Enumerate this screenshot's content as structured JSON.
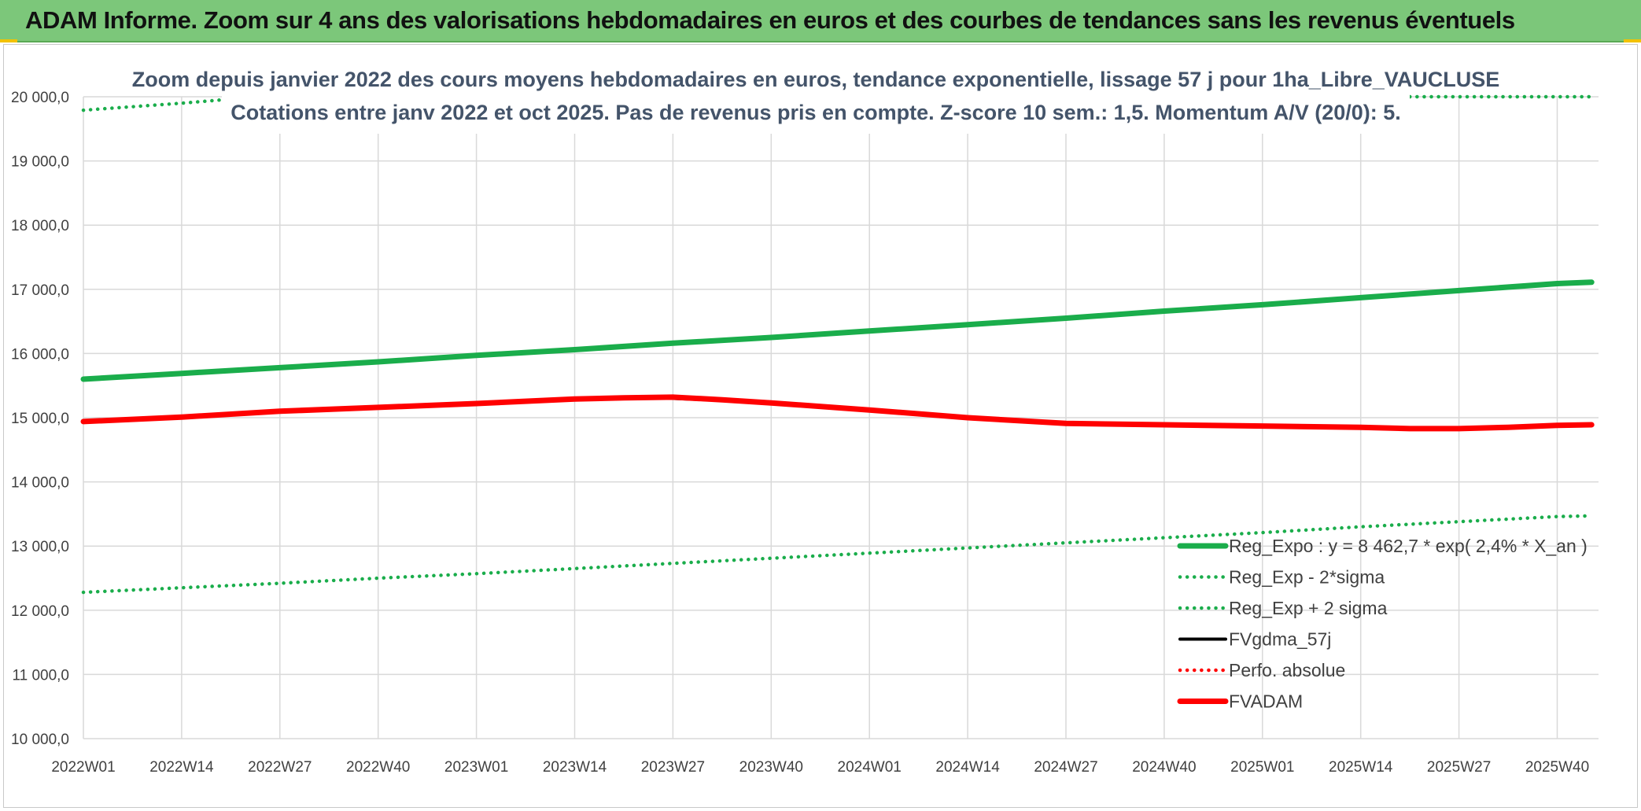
{
  "header": {
    "title": "ADAM Informe. Zoom sur 4 ans des valorisations hebdomadaires en euros et des courbes de tendances sans les revenus éventuels"
  },
  "chart_data": {
    "type": "line",
    "title": "Zoom depuis janvier 2022 des cours moyens hebdomadaires en euros, tendance exponentielle, lissage 57 j pour 1ha_Libre_VAUCLUSE",
    "subtitle": "Cotations entre janv 2022 et oct 2025. Pas de revenus pris en compte. Z-score 10 sem.: 1,5. Momentum A/V (20/0): 5.",
    "xlabel": "",
    "ylabel": "",
    "ylim": [
      10000,
      20000
    ],
    "y_ticks": [
      "20 000,0",
      "19 000,0",
      "18 000,0",
      "17 000,0",
      "16 000,0",
      "15 000,0",
      "14 000,0",
      "13 000,0",
      "12 000,0",
      "11 000,0",
      "10 000,0"
    ],
    "categories": [
      "2022W01",
      "2022W14",
      "2022W27",
      "2022W40",
      "2023W01",
      "2023W14",
      "2023W27",
      "2023W40",
      "2024W01",
      "2024W14",
      "2024W27",
      "2024W40",
      "2025W01",
      "2025W14",
      "2025W27",
      "2025W40"
    ],
    "x_end": 15.35,
    "legend_position": "bottom-right",
    "series": [
      {
        "name": "Reg_Expo : y = 8 462,7 * exp( 2,4% *  X_an )",
        "style": "solid-thick",
        "color": "#1aad4b",
        "x": [
          0,
          1,
          2,
          3,
          4,
          5,
          6,
          7,
          8,
          9,
          10,
          11,
          12,
          13,
          14,
          15,
          15.35
        ],
        "values": [
          15600,
          15690,
          15780,
          15870,
          15970,
          16060,
          16160,
          16250,
          16350,
          16450,
          16550,
          16660,
          16760,
          16870,
          16980,
          17090,
          17110
        ]
      },
      {
        "name": "Reg_Exp - 2*sigma",
        "style": "dotted",
        "color": "#1aad4b",
        "x": [
          0,
          1,
          2,
          3,
          4,
          5,
          6,
          7,
          8,
          9,
          10,
          11,
          12,
          13,
          14,
          15,
          15.35
        ],
        "values": [
          12280,
          12350,
          12420,
          12500,
          12570,
          12650,
          12730,
          12810,
          12890,
          12970,
          13050,
          13130,
          13210,
          13300,
          13380,
          13460,
          13470
        ]
      },
      {
        "name": "Reg_Exp + 2 sigma",
        "style": "dotted",
        "color": "#1aad4b",
        "x": [
          0,
          1,
          1.4,
          13.5,
          14,
          15,
          15.35
        ],
        "values": [
          19790,
          19900,
          19950,
          20000,
          20000,
          20000,
          20000
        ]
      },
      {
        "name": "FVgdma_57j",
        "style": "solid",
        "color": "#000000",
        "x": [
          0,
          1,
          2,
          3,
          4,
          5,
          5.5,
          6,
          6.5,
          7,
          8,
          9,
          10,
          11,
          12,
          13,
          13.5,
          14,
          14.5,
          15,
          15.35
        ],
        "values": [
          14930,
          15000,
          15090,
          15150,
          15210,
          15280,
          15300,
          15300,
          15270,
          15220,
          15110,
          14990,
          14900,
          14880,
          14860,
          14840,
          14820,
          14820,
          14840,
          14870,
          14880
        ]
      },
      {
        "name": "Perfo. absolue",
        "style": "dotted",
        "color": "#ff0000",
        "x": [],
        "values": []
      },
      {
        "name": "FVADAM",
        "style": "solid-thick",
        "color": "#ff0000",
        "x": [
          0,
          1,
          2,
          3,
          4,
          5,
          5.5,
          6,
          6.5,
          7,
          8,
          9,
          10,
          11,
          12,
          13,
          13.5,
          14,
          14.5,
          15,
          15.35
        ],
        "values": [
          14940,
          15010,
          15100,
          15160,
          15220,
          15290,
          15310,
          15320,
          15280,
          15230,
          15120,
          15000,
          14910,
          14890,
          14870,
          14850,
          14830,
          14830,
          14850,
          14880,
          14890
        ]
      }
    ]
  }
}
